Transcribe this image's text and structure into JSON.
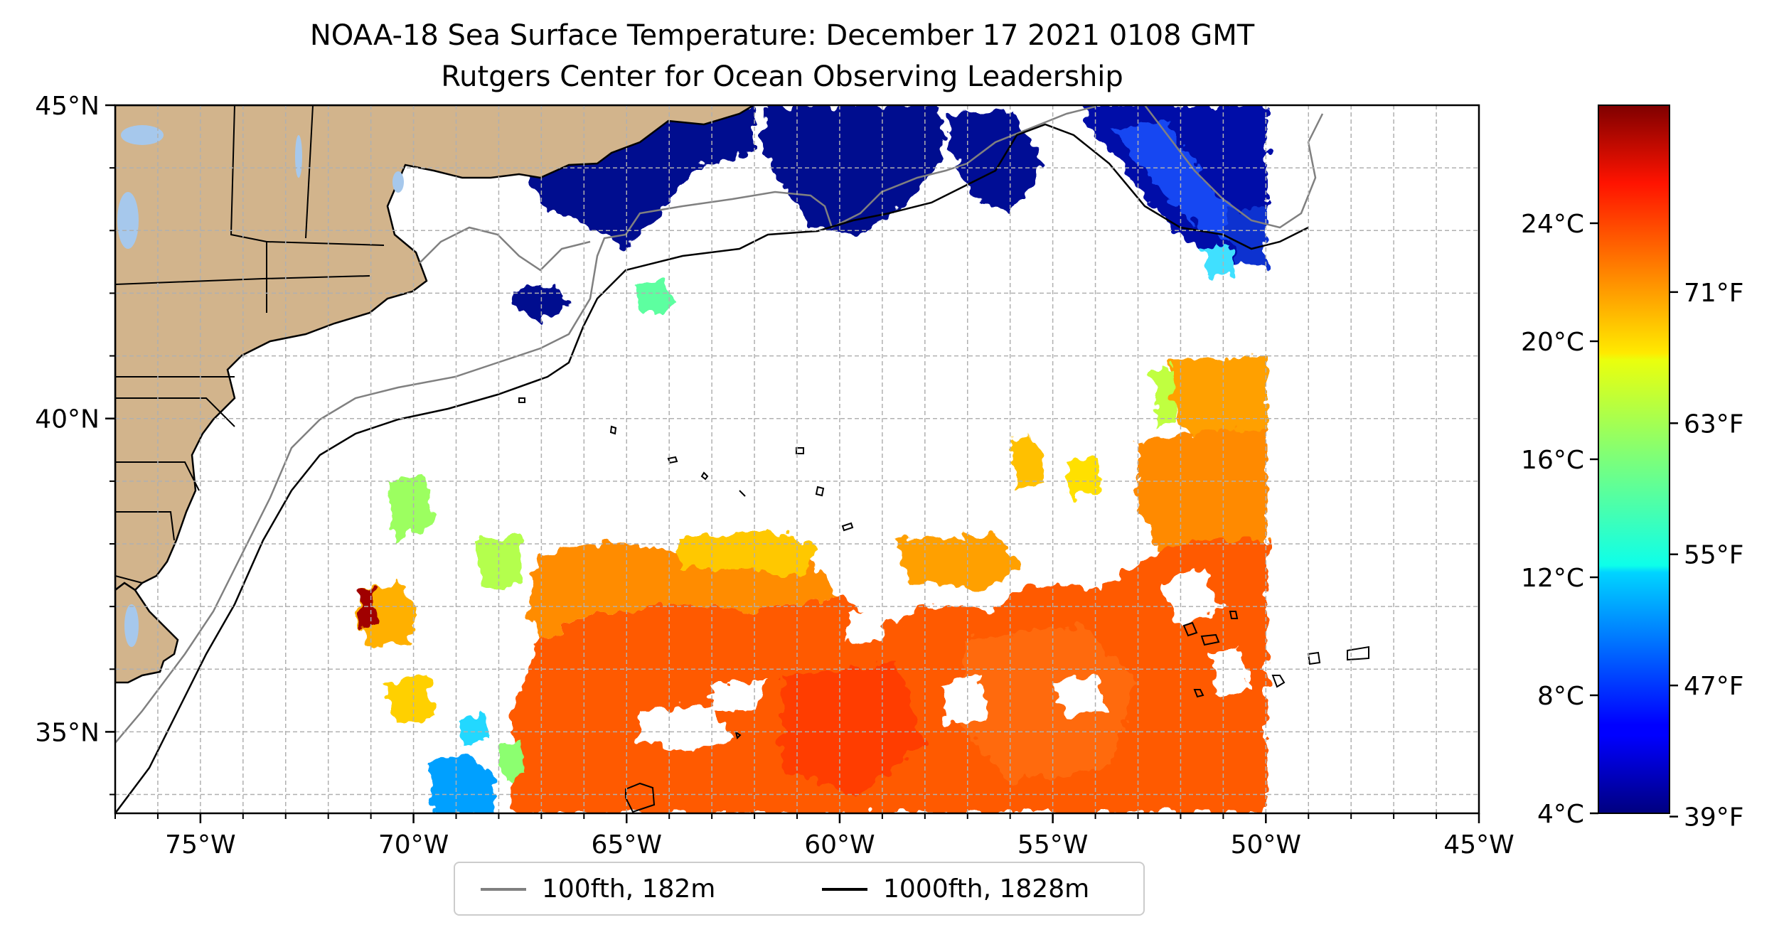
{
  "title": "NOAA-18 Sea Surface Temperature: December 17 2021 0108 GMT",
  "subtitle": "Rutgers Center for Ocean Observing Leadership",
  "map": {
    "lon_range": [
      -77,
      -45
    ],
    "lat_range": [
      33.7,
      45
    ],
    "lon_ticks": [
      {
        "value": -75,
        "label": "75°W"
      },
      {
        "value": -70,
        "label": "70°W"
      },
      {
        "value": -65,
        "label": "65°W"
      },
      {
        "value": -60,
        "label": "60°W"
      },
      {
        "value": -55,
        "label": "55°W"
      },
      {
        "value": -50,
        "label": "50°W"
      },
      {
        "value": -45,
        "label": "45°W"
      }
    ],
    "lat_ticks": [
      {
        "value": 45,
        "label": "45°N"
      },
      {
        "value": 40,
        "label": "40°N"
      },
      {
        "value": 35,
        "label": "35°N"
      }
    ],
    "data_extent_east_lon": -50,
    "colors": {
      "land": "#d2b48c",
      "lakes": "#a6c8ec",
      "isobath_100fth": "#808080",
      "isobath_1000fth": "#000000",
      "gridlines": "#b0b0b0"
    }
  },
  "colorbar": {
    "colormap": "jet",
    "celsius_range": [
      4,
      28
    ],
    "celsius_ticks": [
      {
        "value": 24,
        "label": "24°C"
      },
      {
        "value": 20,
        "label": "20°C"
      },
      {
        "value": 16,
        "label": "16°C"
      },
      {
        "value": 12,
        "label": "12°C"
      },
      {
        "value": 8,
        "label": "8°C"
      },
      {
        "value": 4,
        "label": "4°C"
      }
    ],
    "fahrenheit_ticks": [
      {
        "value": 71,
        "label": "71°F"
      },
      {
        "value": 63,
        "label": "63°F"
      },
      {
        "value": 55,
        "label": "55°F"
      },
      {
        "value": 47,
        "label": "47°F"
      },
      {
        "value": 39,
        "label": "39°F"
      }
    ]
  },
  "legend": {
    "items": [
      {
        "label": "100fth, 182m",
        "color": "#808080"
      },
      {
        "label": "1000fth, 1828m",
        "color": "#000000"
      }
    ]
  }
}
